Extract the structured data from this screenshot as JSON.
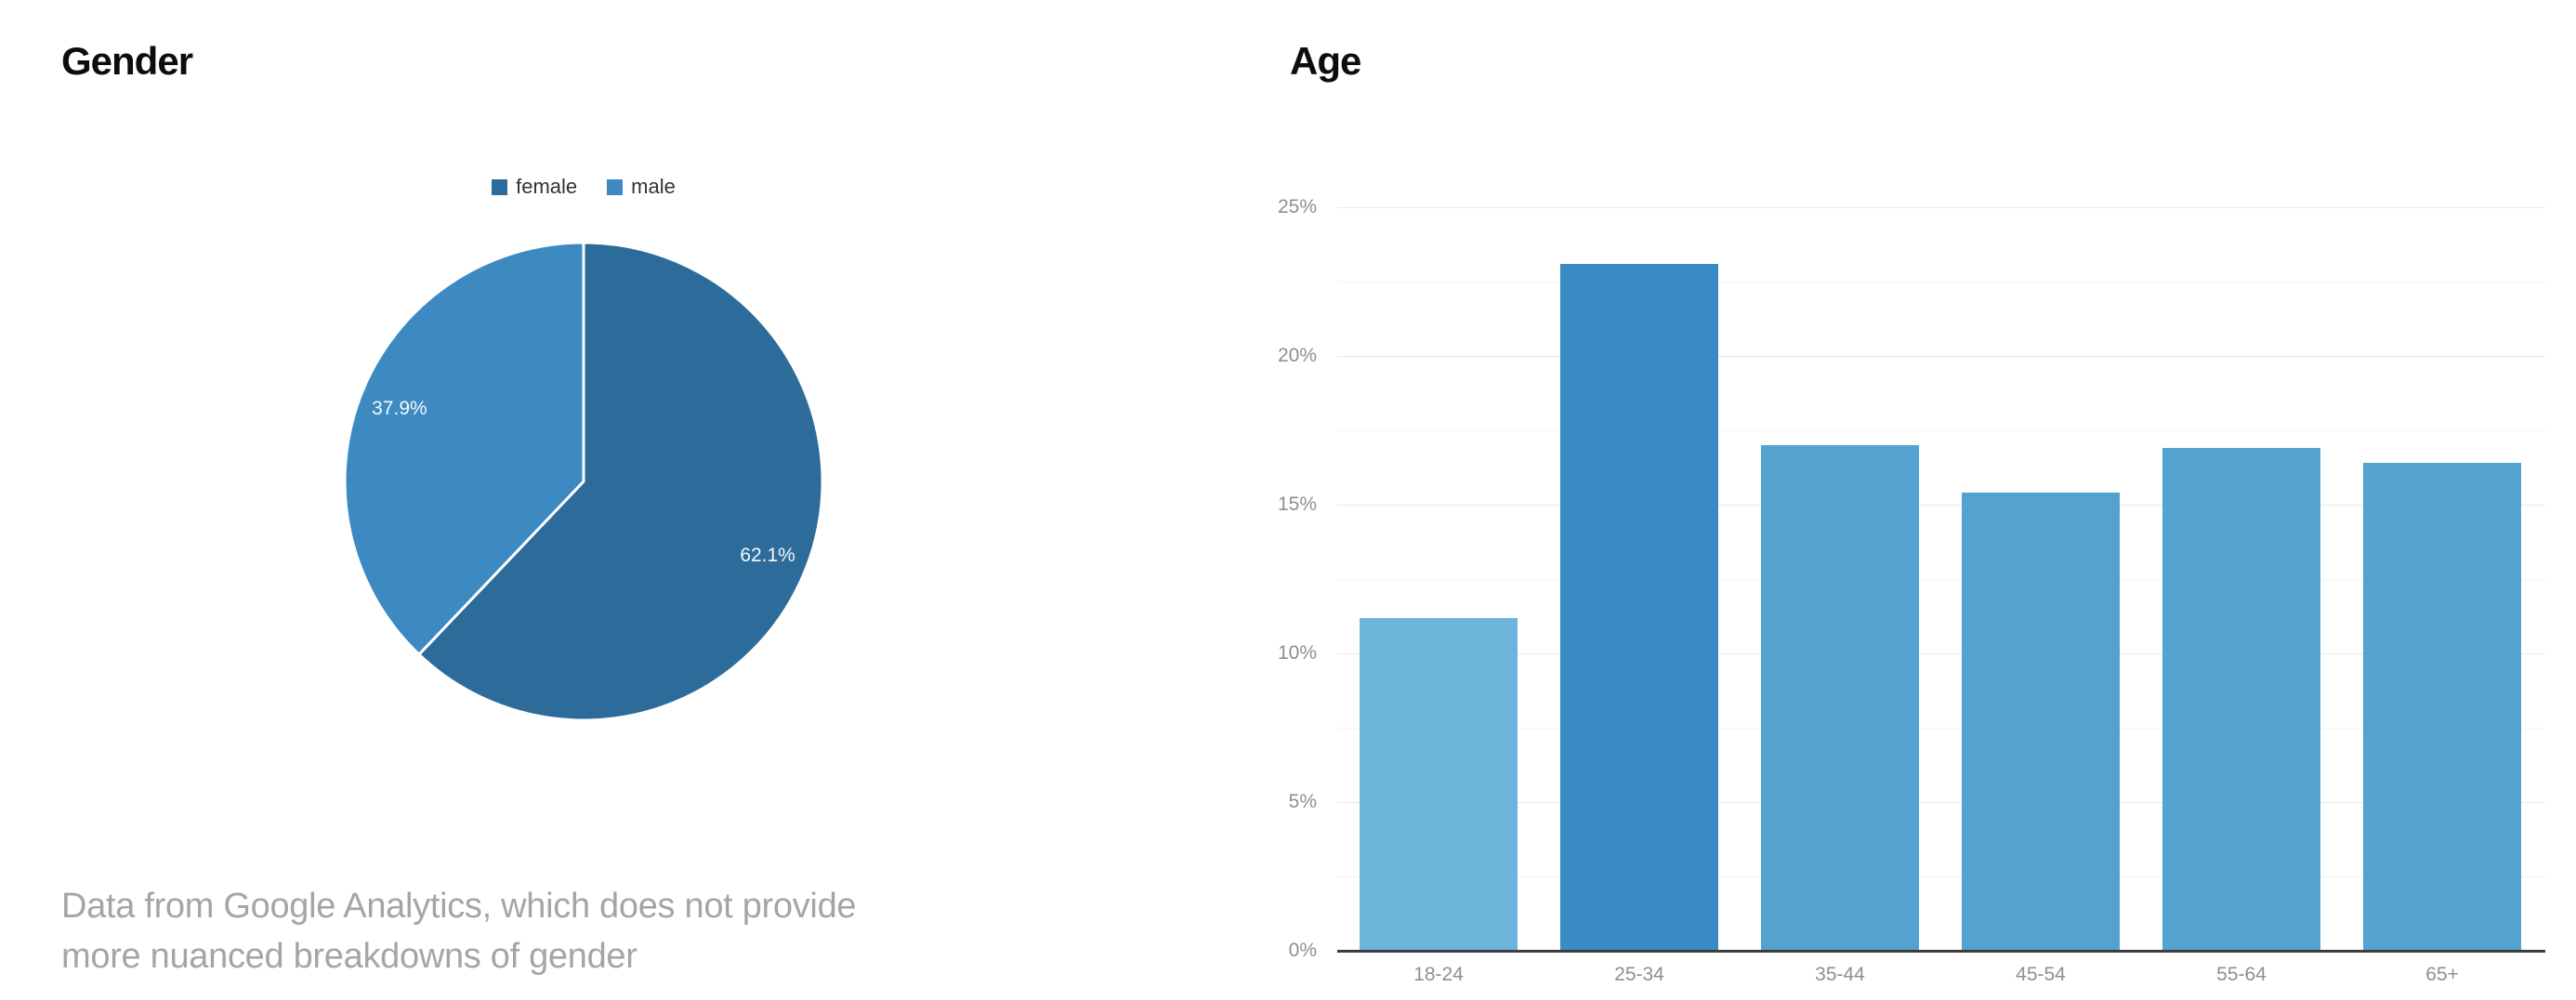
{
  "gender_panel": {
    "title": "Gender",
    "caption_lines": [
      "Data from Google Analytics, which does not provide",
      "more nuanced breakdowns of gender"
    ]
  },
  "age_panel": {
    "title": "Age"
  },
  "chart_data": [
    {
      "type": "pie",
      "title": "Gender",
      "slices": [
        {
          "label": "female",
          "value": 62.1,
          "display": "62.1%",
          "color": "#2d6c9a"
        },
        {
          "label": "male",
          "value": 37.9,
          "display": "37.9%",
          "color": "#3d8ac3"
        }
      ],
      "start_angle_deg": 0,
      "direction": "clockwise",
      "legend_position": "top",
      "legend_entries": [
        "female",
        "male"
      ]
    },
    {
      "type": "bar",
      "title": "Age",
      "categories": [
        "18-24",
        "25-34",
        "35-44",
        "45-54",
        "55-64",
        "65+"
      ],
      "values": [
        11.2,
        23.1,
        17.0,
        15.4,
        16.9,
        16.4
      ],
      "bar_colors": [
        "#6db4db",
        "#3a8ac4",
        "#54a2cf",
        "#54a2cf",
        "#54a2cf",
        "#54a2cf"
      ],
      "xlabel": "",
      "ylabel": "",
      "ylim": [
        0,
        25
      ],
      "y_tick_labels": [
        "0%",
        "5%",
        "10%",
        "15%",
        "20%",
        "25%"
      ],
      "y_tick_values": [
        0,
        5,
        10,
        15,
        20,
        25
      ],
      "minor_grid_values": [
        2.5,
        7.5,
        12.5,
        17.5,
        22.5
      ],
      "grid": true,
      "legend_position": "none"
    }
  ]
}
